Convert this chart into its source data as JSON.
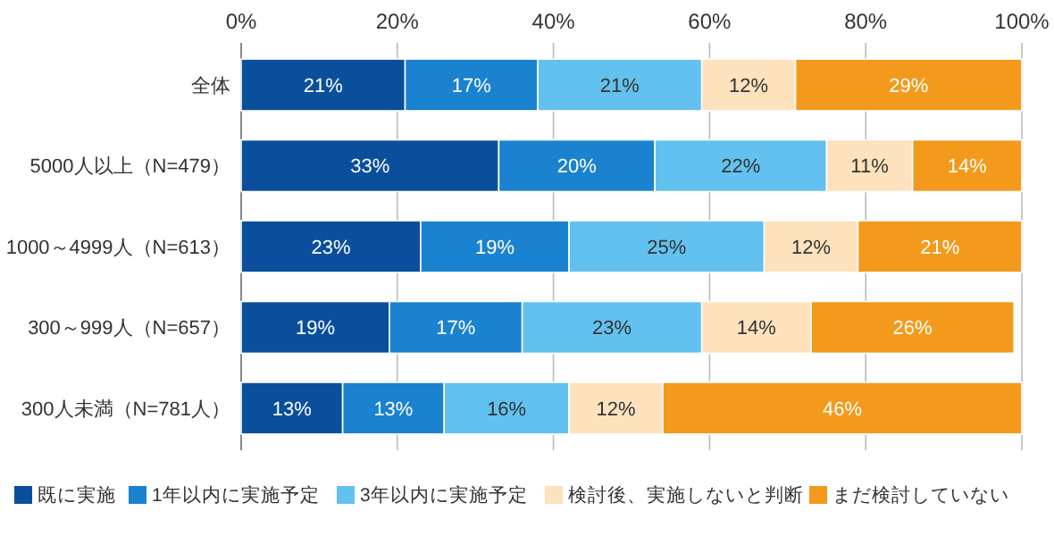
{
  "chart_data": {
    "type": "bar",
    "orientation": "horizontal",
    "stacked": true,
    "categories": [
      "全体",
      "5000人以上（N=479）",
      "1000～4999人（N=613）",
      "300～999人（N=657）",
      "300人未満（N=781人）"
    ],
    "series": [
      {
        "name": "既に実施",
        "color": "#0b4f9c",
        "values": [
          21,
          33,
          23,
          19,
          13
        ],
        "value_labels": [
          "21%",
          "33%",
          "23%",
          "19%",
          "13%"
        ]
      },
      {
        "name": "1年以内に実施予定",
        "color": "#1a82cf",
        "values": [
          17,
          20,
          19,
          17,
          13
        ],
        "value_labels": [
          "17%",
          "20%",
          "19%",
          "17%",
          "13%"
        ]
      },
      {
        "name": "3年以内に実施予定",
        "color": "#62c1ee",
        "values": [
          21,
          22,
          25,
          23,
          16
        ],
        "value_labels": [
          "21%",
          "22%",
          "25%",
          "23%",
          "16%"
        ]
      },
      {
        "name": "検討後、実施しないと判断",
        "color": "#fde2bd",
        "values": [
          12,
          11,
          12,
          14,
          12
        ],
        "value_labels": [
          "12%",
          "11%",
          "12%",
          "14%",
          "12%"
        ]
      },
      {
        "name": "まだ検討していない",
        "color": "#f39a1c",
        "values": [
          29,
          14,
          21,
          26,
          46
        ],
        "value_labels": [
          "29%",
          "14%",
          "21%",
          "26%",
          "46%"
        ]
      }
    ],
    "xlim": [
      0,
      100
    ],
    "xticks": [
      {
        "value": 0,
        "label": "0%"
      },
      {
        "value": 20,
        "label": "20%"
      },
      {
        "value": 40,
        "label": "40%"
      },
      {
        "value": 60,
        "label": "60%"
      },
      {
        "value": 80,
        "label": "80%"
      },
      {
        "value": 100,
        "label": "100%"
      }
    ],
    "grid": "x",
    "legend": "bottom"
  }
}
